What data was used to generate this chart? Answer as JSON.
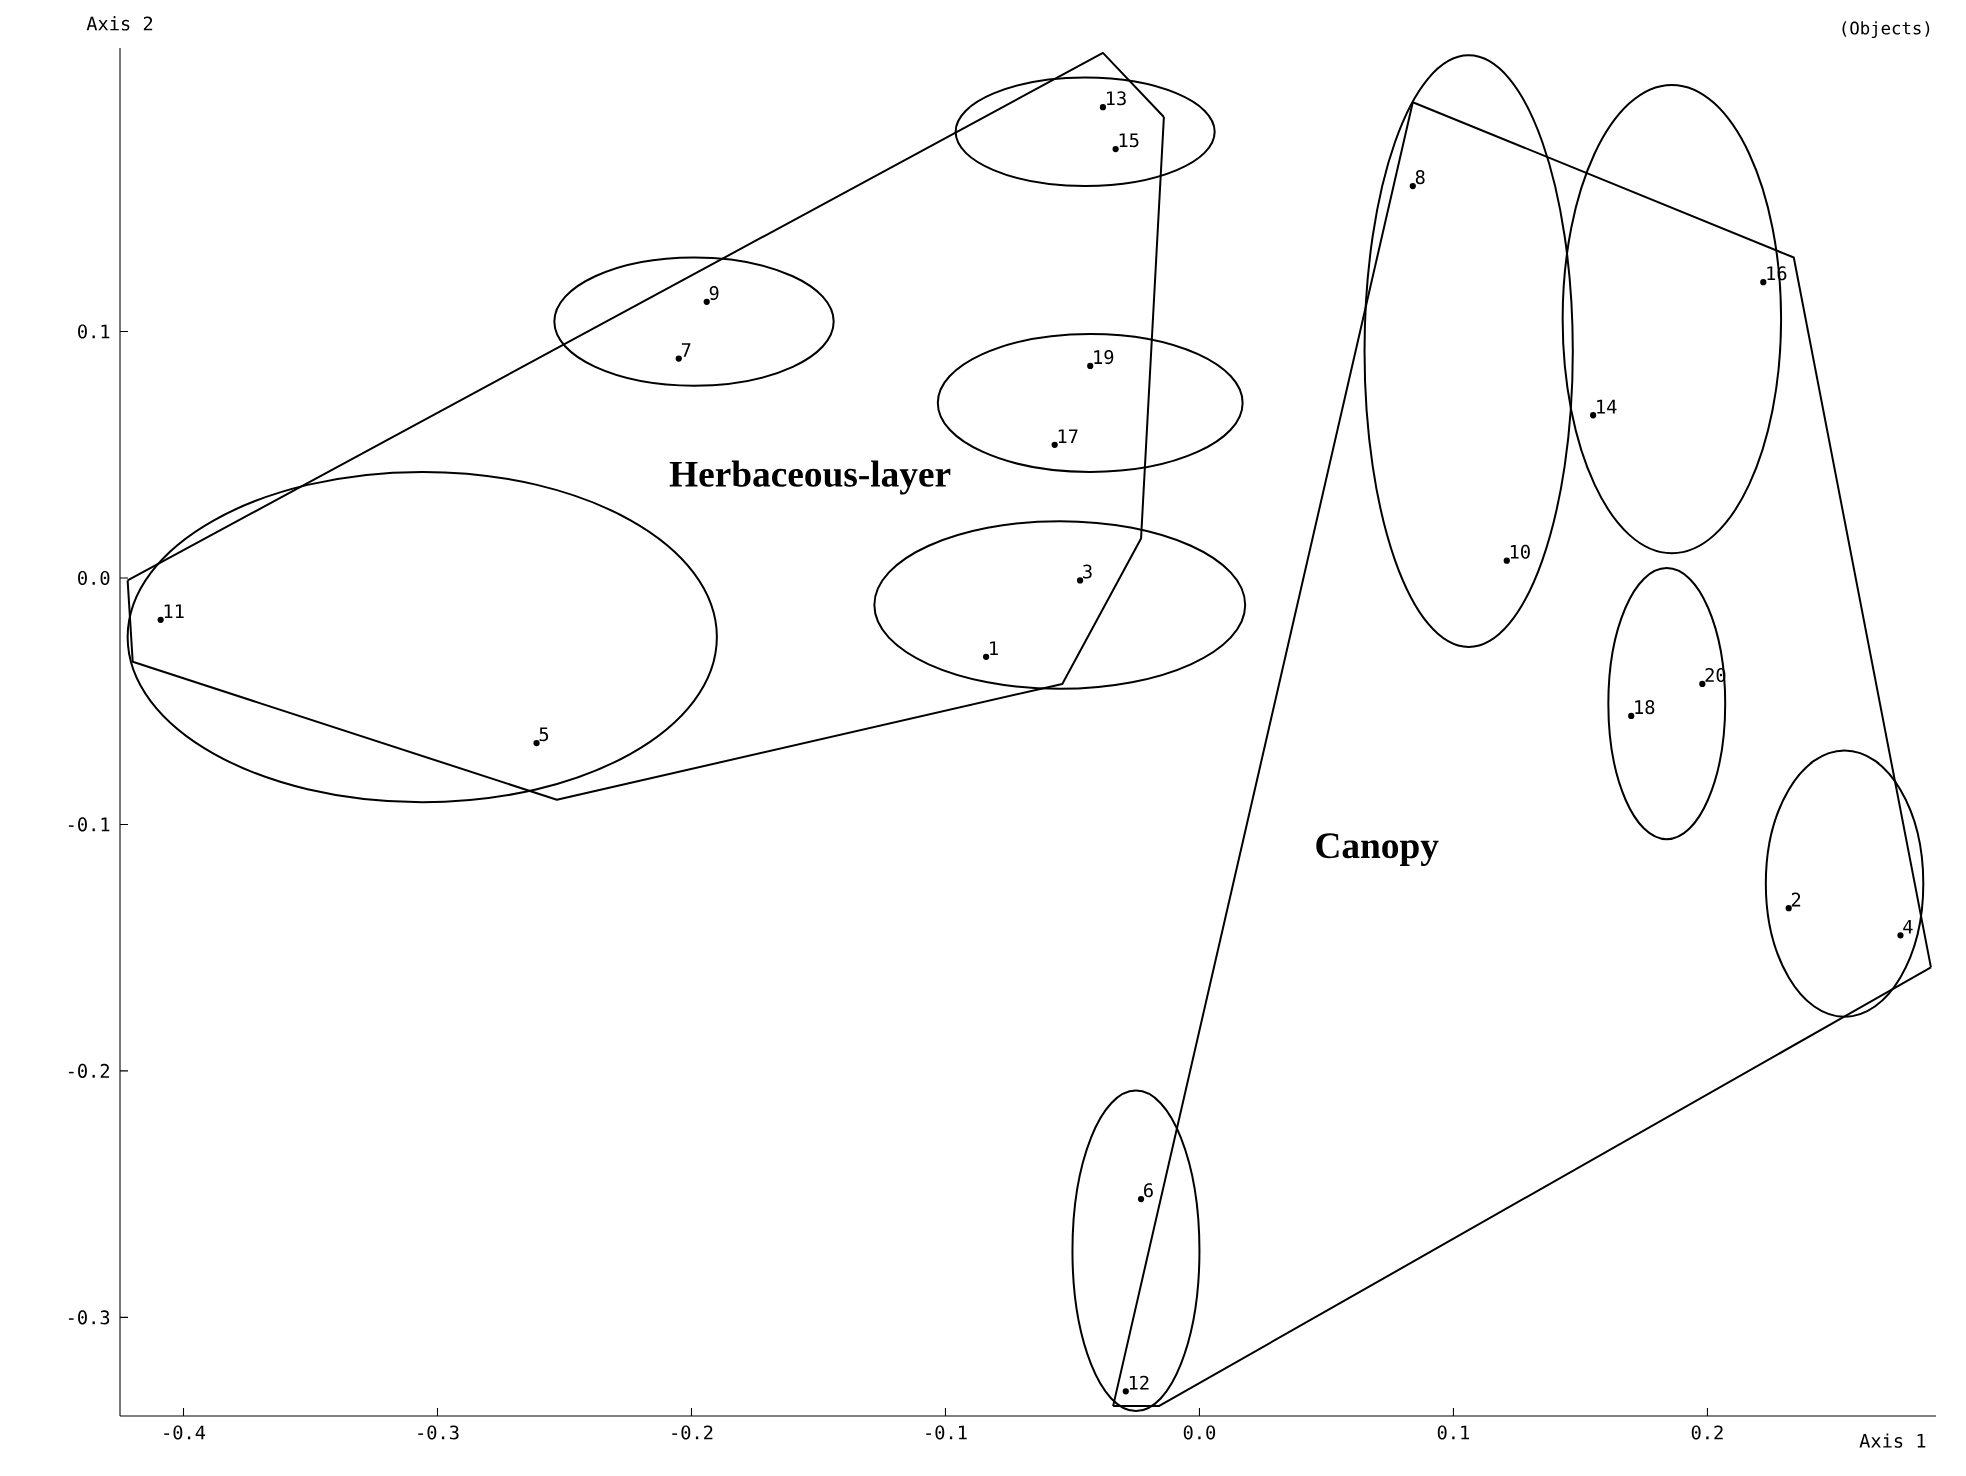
{
  "chart_data": {
    "type": "scatter",
    "xlabel": "Axis 1",
    "ylabel": "Axis 2",
    "xlim": [
      -0.425,
      0.29
    ],
    "ylim": [
      -0.34,
      0.215
    ],
    "xticks": [
      {
        "value": -0.4,
        "label": "-0.4"
      },
      {
        "value": -0.3,
        "label": "-0.3"
      },
      {
        "value": -0.2,
        "label": "-0.2"
      },
      {
        "value": -0.1,
        "label": "-0.1"
      },
      {
        "value": 0,
        "label": "0.0"
      },
      {
        "value": 0.1,
        "label": "0.1"
      },
      {
        "value": 0.2,
        "label": "0.2"
      }
    ],
    "yticks": [
      {
        "value": -0.3,
        "label": "-0.3"
      },
      {
        "value": -0.2,
        "label": "-0.2"
      },
      {
        "value": -0.1,
        "label": "-0.1"
      },
      {
        "value": 0,
        "label": "0.0"
      },
      {
        "value": 0.1,
        "label": "0.1"
      }
    ],
    "series": [
      {
        "marker": "circle",
        "color": "#000000",
        "x": [
          -0.084,
          0.232,
          -0.047,
          0.276,
          -0.261,
          -0.023,
          -0.205,
          0.084,
          -0.194,
          0.121,
          -0.409,
          -0.029,
          -0.038,
          0.155,
          -0.033,
          0.222,
          -0.057,
          0.17,
          -0.043,
          0.198
        ],
        "values": [
          -0.032,
          -0.134,
          -0.001,
          -0.145,
          -0.067,
          -0.252,
          0.089,
          0.159,
          0.112,
          0.007,
          -0.017,
          -0.33,
          0.191,
          0.066,
          0.174,
          0.12,
          0.054,
          -0.056,
          0.086,
          -0.043
        ]
      },
      {
        "type": "line",
        "color": "#000000",
        "x": [
          -0.422,
          -0.038,
          -0.014
        ],
        "values": [
          -0.001,
          0.213,
          0.187
        ]
      },
      {
        "type": "line",
        "color": "#000000",
        "x": [
          -0.422,
          -0.42,
          -0.253,
          -0.054,
          -0.023,
          -0.014
        ],
        "values": [
          -0.001,
          -0.034,
          -0.09,
          -0.043,
          0.016,
          0.187
        ]
      },
      {
        "type": "line",
        "color": "#000000",
        "x": [
          -0.034,
          0.084,
          0.234,
          0.288
        ],
        "values": [
          -0.336,
          0.193,
          0.13,
          -0.158
        ]
      },
      {
        "type": "line",
        "color": "#000000",
        "x": [
          -0.034,
          -0.016,
          0.288
        ],
        "values": [
          -0.336,
          -0.336,
          -0.158
        ]
      }
    ],
    "annotations": [
      "Herbaceous-layer",
      "Canopy",
      "(Objects)",
      {
        "text": "1",
        "x": -0.084,
        "y": -0.032
      },
      {
        "text": "2",
        "x": 0.232,
        "y": -0.134
      },
      {
        "text": "3",
        "x": -0.047,
        "y": -0.001
      },
      {
        "text": "4",
        "x": 0.276,
        "y": -0.145
      },
      {
        "text": "5",
        "x": -0.261,
        "y": -0.067
      },
      {
        "text": "6",
        "x": -0.023,
        "y": -0.252
      },
      {
        "text": "7",
        "x": -0.205,
        "y": 0.089
      },
      {
        "text": "8",
        "x": 0.084,
        "y": 0.159
      },
      {
        "text": "9",
        "x": -0.194,
        "y": 0.112
      },
      {
        "text": "10",
        "x": 0.121,
        "y": 0.007
      },
      {
        "text": "11",
        "x": -0.409,
        "y": -0.017
      },
      {
        "text": "12",
        "x": -0.029,
        "y": -0.33
      },
      {
        "text": "13",
        "x": -0.038,
        "y": 0.191
      },
      {
        "text": "14",
        "x": 0.155,
        "y": 0.066
      },
      {
        "text": "15",
        "x": -0.033,
        "y": 0.174
      },
      {
        "text": "16",
        "x": 0.222,
        "y": 0.12
      },
      {
        "text": "17",
        "x": -0.057,
        "y": 0.054
      },
      {
        "text": "18",
        "x": 0.17,
        "y": -0.056
      },
      {
        "text": "19",
        "x": -0.043,
        "y": 0.086
      },
      {
        "text": "20",
        "x": 0.198,
        "y": -0.043
      }
    ]
  }
}
